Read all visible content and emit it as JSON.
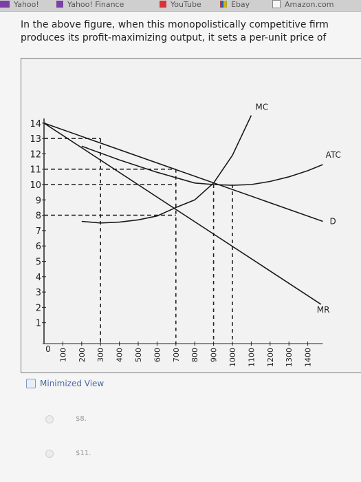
{
  "bookmarks": [
    {
      "label": "Yahoo!",
      "icon": "yahoo-icon"
    },
    {
      "label": "Yahoo! Finance",
      "icon": "yahoo-finance-icon"
    },
    {
      "label": "YouTube",
      "icon": "youtube-icon"
    },
    {
      "label": "Ebay",
      "icon": "ebay-icon"
    },
    {
      "label": "Amazon.com",
      "icon": "amazon-icon"
    }
  ],
  "question": {
    "text": "In the above figure, when this monopolistically competitive firm produces its profit-maximizing output, it sets a per-unit price of"
  },
  "chart_data": {
    "type": "line",
    "title": "",
    "xlabel": "",
    "ylabel": "",
    "xlim": [
      0,
      1500
    ],
    "ylim": [
      0,
      14.5
    ],
    "x_ticks": [
      "0",
      "100",
      "200",
      "300",
      "400",
      "500",
      "600",
      "700",
      "800",
      "900",
      "1000",
      "1100",
      "1200",
      "1300",
      "1400"
    ],
    "y_ticks": [
      "1",
      "2",
      "3",
      "4",
      "5",
      "6",
      "7",
      "8",
      "9",
      "10",
      "11",
      "12",
      "13",
      "14"
    ],
    "series": [
      {
        "name": "MC",
        "x": [
          200,
          300,
          400,
          500,
          600,
          700,
          800,
          900,
          1000,
          1100
        ],
        "y": [
          7.6,
          7.5,
          7.55,
          7.7,
          7.95,
          8.5,
          9.0,
          10.1,
          11.9,
          14.5
        ]
      },
      {
        "name": "ATC",
        "x": [
          200,
          400,
          600,
          800,
          900,
          1000,
          1100,
          1200,
          1300,
          1400,
          1480
        ],
        "y": [
          12.5,
          11.6,
          10.8,
          10.1,
          10.0,
          9.95,
          10.0,
          10.2,
          10.5,
          10.9,
          11.3
        ]
      },
      {
        "name": "D",
        "x": [
          0,
          1480
        ],
        "y": [
          14,
          7.6
        ]
      },
      {
        "name": "MR",
        "x": [
          0,
          1470
        ],
        "y": [
          14,
          2.2
        ]
      }
    ],
    "guides": {
      "horizontal": [
        13,
        11,
        10,
        8
      ],
      "vertical": [
        300,
        700,
        900,
        1000
      ]
    },
    "grid": false
  },
  "minimized_view": {
    "label": "Minimized View"
  },
  "answers": [
    {
      "label": "$8."
    },
    {
      "label": "$11."
    }
  ]
}
